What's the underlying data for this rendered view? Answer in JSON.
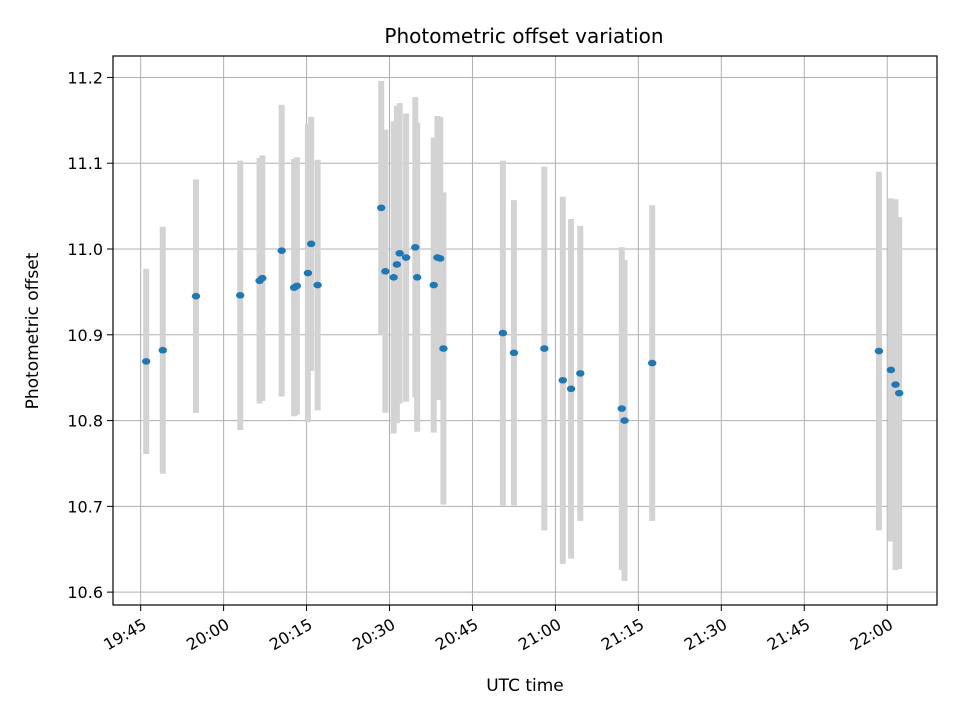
{
  "chart_data": {
    "type": "scatter",
    "title": "Photometric offset variation",
    "xlabel": "UTC time",
    "ylabel": "Photometric offset",
    "x_tick_labels": [
      "19:45",
      "20:00",
      "20:15",
      "20:30",
      "20:45",
      "21:00",
      "21:15",
      "21:30",
      "21:45",
      "22:00"
    ],
    "y_tick_labels": [
      "10.6",
      "10.7",
      "10.8",
      "10.9",
      "11.0",
      "11.1",
      "11.2"
    ],
    "xlim": [
      "19:40:00",
      "22:09:00"
    ],
    "ylim": [
      10.585,
      11.225
    ],
    "grid": true,
    "marker_color": "#1f77b4",
    "errorbar_color": "#d3d3d3",
    "points": [
      {
        "x": "19:46:00",
        "y": 10.869,
        "err": 0.108
      },
      {
        "x": "19:49:00",
        "y": 10.882,
        "err": 0.144
      },
      {
        "x": "19:55:00",
        "y": 10.945,
        "err": 0.136
      },
      {
        "x": "20:03:00",
        "y": 10.946,
        "err": 0.157
      },
      {
        "x": "20:06:30",
        "y": 10.963,
        "err": 0.143
      },
      {
        "x": "20:07:00",
        "y": 10.966,
        "err": 0.143
      },
      {
        "x": "20:10:30",
        "y": 10.998,
        "err": 0.17
      },
      {
        "x": "20:12:45",
        "y": 10.955,
        "err": 0.15
      },
      {
        "x": "20:13:15",
        "y": 10.957,
        "err": 0.15
      },
      {
        "x": "20:15:15",
        "y": 10.972,
        "err": 0.174
      },
      {
        "x": "20:15:50",
        "y": 11.006,
        "err": 0.148
      },
      {
        "x": "20:17:00",
        "y": 10.958,
        "err": 0.146
      },
      {
        "x": "20:28:30",
        "y": 11.048,
        "err": 0.148
      },
      {
        "x": "20:29:15",
        "y": 10.974,
        "err": 0.165
      },
      {
        "x": "20:30:45",
        "y": 10.967,
        "err": 0.182
      },
      {
        "x": "20:31:20",
        "y": 10.982,
        "err": 0.185
      },
      {
        "x": "20:31:50",
        "y": 10.995,
        "err": 0.175
      },
      {
        "x": "20:33:00",
        "y": 10.99,
        "err": 0.168
      },
      {
        "x": "20:34:40",
        "y": 11.002,
        "err": 0.175
      },
      {
        "x": "20:35:00",
        "y": 10.967,
        "err": 0.18
      },
      {
        "x": "20:38:00",
        "y": 10.958,
        "err": 0.172
      },
      {
        "x": "20:38:40",
        "y": 10.99,
        "err": 0.165
      },
      {
        "x": "20:39:10",
        "y": 10.989,
        "err": 0.165
      },
      {
        "x": "20:39:45",
        "y": 10.884,
        "err": 0.182
      },
      {
        "x": "20:50:30",
        "y": 10.902,
        "err": 0.201
      },
      {
        "x": "20:52:30",
        "y": 10.879,
        "err": 0.178
      },
      {
        "x": "20:58:00",
        "y": 10.884,
        "err": 0.212
      },
      {
        "x": "21:01:20",
        "y": 10.847,
        "err": 0.214
      },
      {
        "x": "21:02:50",
        "y": 10.837,
        "err": 0.198
      },
      {
        "x": "21:04:30",
        "y": 10.855,
        "err": 0.172
      },
      {
        "x": "21:12:00",
        "y": 10.814,
        "err": 0.188
      },
      {
        "x": "21:12:30",
        "y": 10.8,
        "err": 0.187
      },
      {
        "x": "21:17:30",
        "y": 10.867,
        "err": 0.184
      },
      {
        "x": "21:58:30",
        "y": 10.881,
        "err": 0.209
      },
      {
        "x": "22:00:40",
        "y": 10.859,
        "err": 0.2
      },
      {
        "x": "22:01:30",
        "y": 10.842,
        "err": 0.216
      },
      {
        "x": "22:02:10",
        "y": 10.832,
        "err": 0.205
      }
    ]
  }
}
